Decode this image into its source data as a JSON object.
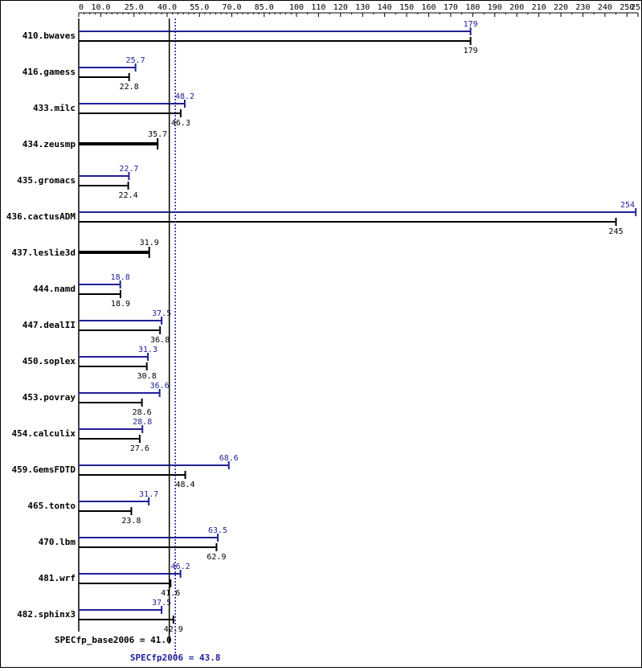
{
  "chart_data": {
    "type": "bar",
    "orientation": "horizontal",
    "colors": {
      "peak": "#20209a",
      "base": "#000000"
    },
    "x_ticks": [
      "0",
      "10.0",
      "25.0",
      "40.0",
      "55.0",
      "70.0",
      "85.0",
      "100",
      "110",
      "120",
      "130",
      "140",
      "150",
      "160",
      "170",
      "180",
      "190",
      "200",
      "210",
      "220",
      "230",
      "240",
      "250",
      "255"
    ],
    "reference_lines": [
      {
        "label": "SPECfp_base2006 = 41.0",
        "value": 41.0,
        "color": "#000000",
        "style": "solid"
      },
      {
        "label": "SPECfp2006 = 43.8",
        "value": 43.8,
        "color": "#20209a",
        "style": "dotted"
      }
    ],
    "benchmarks": [
      {
        "name": "410.bwaves",
        "peak": 179,
        "peak_label": "179",
        "base": 179,
        "base_label": "179"
      },
      {
        "name": "416.gamess",
        "peak": 25.7,
        "peak_label": "25.7",
        "base": 22.8,
        "base_label": "22.8"
      },
      {
        "name": "433.milc",
        "peak": 48.2,
        "peak_label": "48.2",
        "base": 46.3,
        "base_label": "46.3"
      },
      {
        "name": "434.zeusmp",
        "peak": null,
        "peak_label": null,
        "base": 35.7,
        "base_label": "35.7"
      },
      {
        "name": "435.gromacs",
        "peak": 22.7,
        "peak_label": "22.7",
        "base": 22.4,
        "base_label": "22.4"
      },
      {
        "name": "436.cactusADM",
        "peak": 254,
        "peak_label": "254",
        "base": 245,
        "base_label": "245"
      },
      {
        "name": "437.leslie3d",
        "peak": null,
        "peak_label": null,
        "base": 31.9,
        "base_label": "31.9"
      },
      {
        "name": "444.namd",
        "peak": 18.8,
        "peak_label": "18.8",
        "base": 18.9,
        "base_label": "18.9"
      },
      {
        "name": "447.dealII",
        "peak": 37.5,
        "peak_label": "37.5",
        "base": 36.8,
        "base_label": "36.8"
      },
      {
        "name": "450.soplex",
        "peak": 31.3,
        "peak_label": "31.3",
        "base": 30.8,
        "base_label": "30.8"
      },
      {
        "name": "453.povray",
        "peak": 36.6,
        "peak_label": "36.6",
        "base": 28.6,
        "base_label": "28.6"
      },
      {
        "name": "454.calculix",
        "peak": 28.8,
        "peak_label": "28.8",
        "base": 27.6,
        "base_label": "27.6"
      },
      {
        "name": "459.GemsFDTD",
        "peak": 68.6,
        "peak_label": "68.6",
        "base": 48.4,
        "base_label": "48.4"
      },
      {
        "name": "465.tonto",
        "peak": 31.7,
        "peak_label": "31.7",
        "base": 23.8,
        "base_label": "23.8"
      },
      {
        "name": "470.lbm",
        "peak": 63.5,
        "peak_label": "63.5",
        "base": 62.9,
        "base_label": "62.9"
      },
      {
        "name": "481.wrf",
        "peak": 46.2,
        "peak_label": "46.2",
        "base": 41.6,
        "base_label": "41.6"
      },
      {
        "name": "482.sphinx3",
        "peak": 37.5,
        "peak_label": "37.5",
        "base": 42.9,
        "base_label": "42.9"
      }
    ]
  }
}
